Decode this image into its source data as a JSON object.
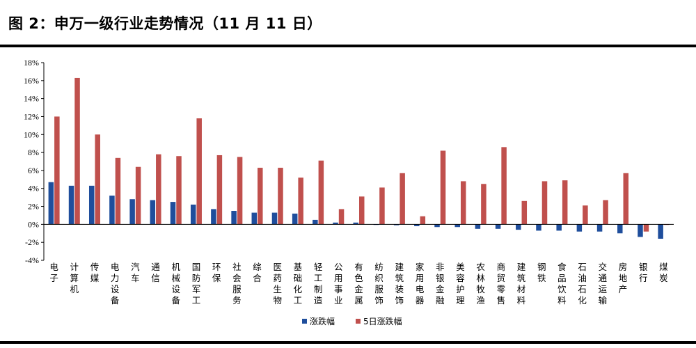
{
  "header": {
    "title": "图 2：申万一级行业走势情况（11 月 11 日）"
  },
  "colors": {
    "series1": "#1f4e9c",
    "series2": "#c0504d"
  },
  "chart_data": {
    "type": "bar",
    "title": "",
    "xlabel": "",
    "ylabel": "",
    "ylim": [
      -4,
      18
    ],
    "yticks": [
      -4,
      -2,
      0,
      2,
      4,
      6,
      8,
      10,
      12,
      14,
      16,
      18
    ],
    "ytick_suffix": "%",
    "grid": false,
    "legend_position": "bottom",
    "categories": [
      "电子",
      "计算机",
      "传媒",
      "电力设备",
      "汽车",
      "通信",
      "机械设备",
      "国防军工",
      "环保",
      "社会服务",
      "综合",
      "医药生物",
      "基础化工",
      "轻工制造",
      "公用事业",
      "有色金属",
      "纺织服饰",
      "建筑装饰",
      "家用电器",
      "非银金融",
      "美容护理",
      "农林牧渔",
      "商贸零售",
      "建筑材料",
      "钢铁",
      "食品饮料",
      "石油石化",
      "交通运输",
      "房地产",
      "银行",
      "煤炭"
    ],
    "series": [
      {
        "name": "涨跌幅",
        "values": [
          4.7,
          4.3,
          4.3,
          3.2,
          2.8,
          2.7,
          2.5,
          2.2,
          1.7,
          1.5,
          1.3,
          1.3,
          1.2,
          0.5,
          0.2,
          0.2,
          0.0,
          -0.1,
          -0.2,
          -0.3,
          -0.3,
          -0.5,
          -0.5,
          -0.6,
          -0.7,
          -0.7,
          -0.8,
          -0.8,
          -1.0,
          -1.4,
          -1.6
        ]
      },
      {
        "name": "5日涨跌幅",
        "values": [
          12.0,
          16.3,
          10.0,
          7.4,
          6.4,
          7.8,
          7.6,
          11.8,
          7.7,
          7.5,
          6.3,
          6.3,
          5.2,
          7.1,
          1.7,
          3.1,
          4.1,
          5.7,
          0.9,
          8.2,
          4.8,
          4.5,
          8.6,
          2.6,
          4.8,
          4.9,
          2.1,
          2.7,
          5.7,
          -0.8,
          0.0
        ]
      }
    ]
  }
}
